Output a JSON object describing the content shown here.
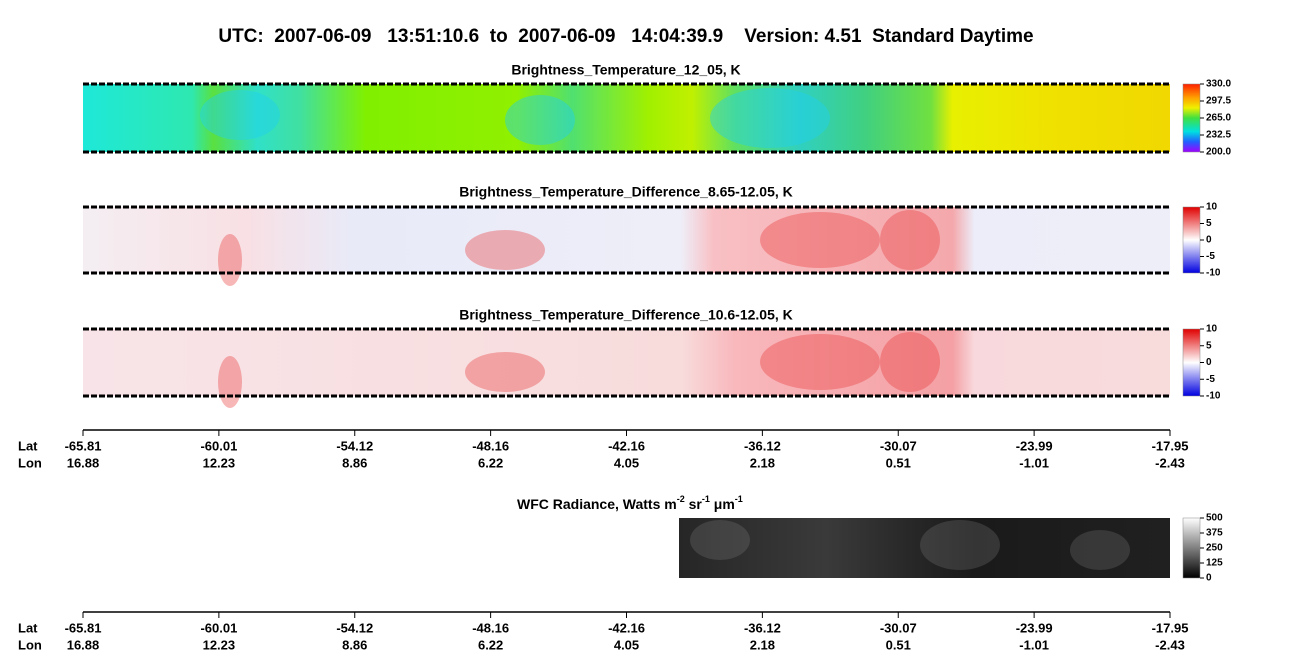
{
  "title": "UTC:  2007-06-09   13:51:10.6  to  2007-06-09   14:04:39.9    Version: 4.51  Standard Daytime",
  "panels": [
    {
      "title": "Brightness_Temperature_12_05, K",
      "colorbar_ticks": [
        "330.0",
        "297.5",
        "265.0",
        "232.5",
        "200.0"
      ]
    },
    {
      "title": "Brightness_Temperature_Difference_8.65-12.05, K",
      "colorbar_ticks": [
        "10",
        "5",
        "0",
        "-5",
        "-10"
      ]
    },
    {
      "title": "Brightness_Temperature_Difference_10.6-12.05, K",
      "colorbar_ticks": [
        "10",
        "5",
        "0",
        "-5",
        "-10"
      ]
    }
  ],
  "wfc": {
    "title_parts": [
      "WFC Radiance, Watts m",
      "-2",
      " sr",
      "-1",
      " μm",
      "-1"
    ],
    "colorbar_ticks": [
      "500",
      "375",
      "250",
      "125",
      "0"
    ]
  },
  "axes": [
    {
      "lat_label": "Lat",
      "lon_label": "Lon",
      "lat": [
        "-65.81",
        "-60.01",
        "-54.12",
        "-48.16",
        "-42.16",
        "-36.12",
        "-30.07",
        "-23.99",
        "-17.95"
      ],
      "lon": [
        "16.88",
        "12.23",
        "8.86",
        "6.22",
        "4.05",
        "2.18",
        "0.51",
        "-1.01",
        "-2.43"
      ]
    },
    {
      "lat_label": "Lat",
      "lon_label": "Lon",
      "lat": [
        "-65.81",
        "-60.01",
        "-54.12",
        "-48.16",
        "-42.16",
        "-36.12",
        "-30.07",
        "-23.99",
        "-17.95"
      ],
      "lon": [
        "16.88",
        "12.23",
        "8.86",
        "6.22",
        "4.05",
        "2.18",
        "0.51",
        "-1.01",
        "-2.43"
      ]
    }
  ]
}
